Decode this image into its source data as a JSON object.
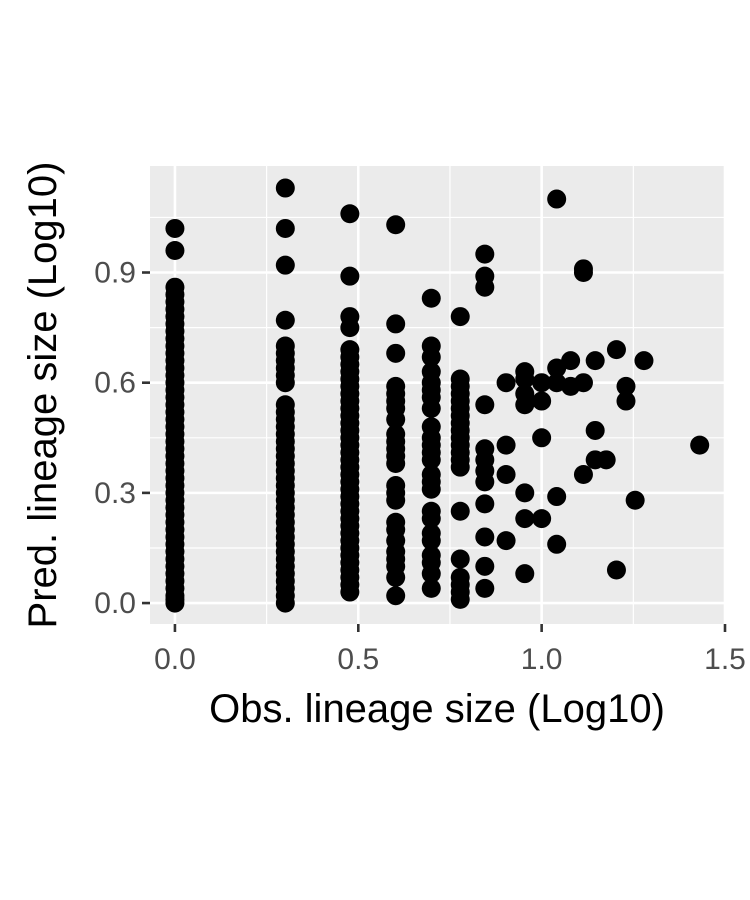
{
  "chart_data": {
    "type": "scatter",
    "title": "",
    "xlabel": "Obs. lineage size (Log10)",
    "ylabel": "Pred. lineage size (Log10)",
    "xlim": [
      -0.068,
      1.5
    ],
    "ylim": [
      -0.057,
      1.19
    ],
    "x_ticks": [
      0.0,
      0.5,
      1.0,
      1.5
    ],
    "x_tick_labels": [
      "0.0",
      "0.5",
      "1.0",
      "1.5"
    ],
    "y_ticks": [
      0.0,
      0.3,
      0.6,
      0.9
    ],
    "y_tick_labels": [
      "0.0",
      "0.3",
      "0.6",
      "0.9"
    ],
    "grid": true,
    "legend": "none",
    "colors": {
      "panel": "#ebebeb",
      "grid": "#ffffff",
      "point": "#000000",
      "tick_label": "#4d4d4d"
    },
    "points": [
      [
        0.0,
        0.0
      ],
      [
        0.0,
        0.01
      ],
      [
        0.0,
        0.02
      ],
      [
        0.0,
        0.04
      ],
      [
        0.0,
        0.06
      ],
      [
        0.0,
        0.08
      ],
      [
        0.0,
        0.1
      ],
      [
        0.0,
        0.12
      ],
      [
        0.0,
        0.14
      ],
      [
        0.0,
        0.16
      ],
      [
        0.0,
        0.18
      ],
      [
        0.0,
        0.2
      ],
      [
        0.0,
        0.22
      ],
      [
        0.0,
        0.24
      ],
      [
        0.0,
        0.26
      ],
      [
        0.0,
        0.28
      ],
      [
        0.0,
        0.3
      ],
      [
        0.0,
        0.32
      ],
      [
        0.0,
        0.34
      ],
      [
        0.0,
        0.36
      ],
      [
        0.0,
        0.38
      ],
      [
        0.0,
        0.4
      ],
      [
        0.0,
        0.42
      ],
      [
        0.0,
        0.44
      ],
      [
        0.0,
        0.46
      ],
      [
        0.0,
        0.48
      ],
      [
        0.0,
        0.5
      ],
      [
        0.0,
        0.52
      ],
      [
        0.0,
        0.54
      ],
      [
        0.0,
        0.56
      ],
      [
        0.0,
        0.58
      ],
      [
        0.0,
        0.6
      ],
      [
        0.0,
        0.62
      ],
      [
        0.0,
        0.64
      ],
      [
        0.0,
        0.66
      ],
      [
        0.0,
        0.68
      ],
      [
        0.0,
        0.7
      ],
      [
        0.0,
        0.72
      ],
      [
        0.0,
        0.74
      ],
      [
        0.0,
        0.76
      ],
      [
        0.0,
        0.78
      ],
      [
        0.0,
        0.8
      ],
      [
        0.0,
        0.82
      ],
      [
        0.0,
        0.84
      ],
      [
        0.0,
        0.86
      ],
      [
        0.0,
        0.96
      ],
      [
        0.0,
        1.02
      ],
      [
        0.301,
        0.0
      ],
      [
        0.301,
        0.02
      ],
      [
        0.301,
        0.04
      ],
      [
        0.301,
        0.06
      ],
      [
        0.301,
        0.08
      ],
      [
        0.301,
        0.1
      ],
      [
        0.301,
        0.12
      ],
      [
        0.301,
        0.14
      ],
      [
        0.301,
        0.16
      ],
      [
        0.301,
        0.18
      ],
      [
        0.301,
        0.2
      ],
      [
        0.301,
        0.22
      ],
      [
        0.301,
        0.24
      ],
      [
        0.301,
        0.26
      ],
      [
        0.301,
        0.28
      ],
      [
        0.301,
        0.3
      ],
      [
        0.301,
        0.32
      ],
      [
        0.301,
        0.34
      ],
      [
        0.301,
        0.36
      ],
      [
        0.301,
        0.38
      ],
      [
        0.301,
        0.4
      ],
      [
        0.301,
        0.42
      ],
      [
        0.301,
        0.44
      ],
      [
        0.301,
        0.46
      ],
      [
        0.301,
        0.48
      ],
      [
        0.301,
        0.5
      ],
      [
        0.301,
        0.52
      ],
      [
        0.301,
        0.54
      ],
      [
        0.301,
        0.6
      ],
      [
        0.301,
        0.62
      ],
      [
        0.301,
        0.64
      ],
      [
        0.301,
        0.66
      ],
      [
        0.301,
        0.68
      ],
      [
        0.301,
        0.7
      ],
      [
        0.301,
        0.77
      ],
      [
        0.301,
        0.92
      ],
      [
        0.301,
        1.02
      ],
      [
        0.301,
        1.13
      ],
      [
        0.477,
        0.03
      ],
      [
        0.477,
        0.05
      ],
      [
        0.477,
        0.07
      ],
      [
        0.477,
        0.09
      ],
      [
        0.477,
        0.11
      ],
      [
        0.477,
        0.13
      ],
      [
        0.477,
        0.15
      ],
      [
        0.477,
        0.17
      ],
      [
        0.477,
        0.19
      ],
      [
        0.477,
        0.21
      ],
      [
        0.477,
        0.23
      ],
      [
        0.477,
        0.25
      ],
      [
        0.477,
        0.27
      ],
      [
        0.477,
        0.29
      ],
      [
        0.477,
        0.31
      ],
      [
        0.477,
        0.33
      ],
      [
        0.477,
        0.35
      ],
      [
        0.477,
        0.37
      ],
      [
        0.477,
        0.39
      ],
      [
        0.477,
        0.41
      ],
      [
        0.477,
        0.43
      ],
      [
        0.477,
        0.45
      ],
      [
        0.477,
        0.47
      ],
      [
        0.477,
        0.49
      ],
      [
        0.477,
        0.51
      ],
      [
        0.477,
        0.53
      ],
      [
        0.477,
        0.55
      ],
      [
        0.477,
        0.57
      ],
      [
        0.477,
        0.59
      ],
      [
        0.477,
        0.61
      ],
      [
        0.477,
        0.63
      ],
      [
        0.477,
        0.65
      ],
      [
        0.477,
        0.67
      ],
      [
        0.477,
        0.69
      ],
      [
        0.477,
        0.75
      ],
      [
        0.477,
        0.78
      ],
      [
        0.477,
        0.89
      ],
      [
        0.477,
        1.06
      ],
      [
        0.602,
        0.02
      ],
      [
        0.602,
        0.07
      ],
      [
        0.602,
        0.1
      ],
      [
        0.602,
        0.12
      ],
      [
        0.602,
        0.14
      ],
      [
        0.602,
        0.17
      ],
      [
        0.602,
        0.2
      ],
      [
        0.602,
        0.22
      ],
      [
        0.602,
        0.28
      ],
      [
        0.602,
        0.3
      ],
      [
        0.602,
        0.32
      ],
      [
        0.602,
        0.38
      ],
      [
        0.602,
        0.4
      ],
      [
        0.602,
        0.42
      ],
      [
        0.602,
        0.44
      ],
      [
        0.602,
        0.46
      ],
      [
        0.602,
        0.5
      ],
      [
        0.602,
        0.53
      ],
      [
        0.602,
        0.55
      ],
      [
        0.602,
        0.57
      ],
      [
        0.602,
        0.59
      ],
      [
        0.602,
        0.68
      ],
      [
        0.602,
        0.76
      ],
      [
        0.602,
        1.03
      ],
      [
        0.699,
        0.04
      ],
      [
        0.699,
        0.08
      ],
      [
        0.699,
        0.11
      ],
      [
        0.699,
        0.13
      ],
      [
        0.699,
        0.17
      ],
      [
        0.699,
        0.19
      ],
      [
        0.699,
        0.23
      ],
      [
        0.699,
        0.25
      ],
      [
        0.699,
        0.31
      ],
      [
        0.699,
        0.33
      ],
      [
        0.699,
        0.35
      ],
      [
        0.699,
        0.39
      ],
      [
        0.699,
        0.41
      ],
      [
        0.699,
        0.43
      ],
      [
        0.699,
        0.45
      ],
      [
        0.699,
        0.48
      ],
      [
        0.699,
        0.53
      ],
      [
        0.699,
        0.56
      ],
      [
        0.699,
        0.58
      ],
      [
        0.699,
        0.6
      ],
      [
        0.699,
        0.63
      ],
      [
        0.699,
        0.67
      ],
      [
        0.699,
        0.7
      ],
      [
        0.699,
        0.83
      ],
      [
        0.778,
        0.01
      ],
      [
        0.778,
        0.03
      ],
      [
        0.778,
        0.05
      ],
      [
        0.778,
        0.07
      ],
      [
        0.778,
        0.12
      ],
      [
        0.778,
        0.25
      ],
      [
        0.778,
        0.37
      ],
      [
        0.778,
        0.39
      ],
      [
        0.778,
        0.41
      ],
      [
        0.778,
        0.43
      ],
      [
        0.778,
        0.45
      ],
      [
        0.778,
        0.47
      ],
      [
        0.778,
        0.49
      ],
      [
        0.778,
        0.51
      ],
      [
        0.778,
        0.53
      ],
      [
        0.778,
        0.55
      ],
      [
        0.778,
        0.57
      ],
      [
        0.778,
        0.59
      ],
      [
        0.778,
        0.61
      ],
      [
        0.778,
        0.78
      ],
      [
        0.845,
        0.04
      ],
      [
        0.845,
        0.1
      ],
      [
        0.845,
        0.18
      ],
      [
        0.845,
        0.27
      ],
      [
        0.845,
        0.33
      ],
      [
        0.845,
        0.36
      ],
      [
        0.845,
        0.39
      ],
      [
        0.845,
        0.42
      ],
      [
        0.845,
        0.54
      ],
      [
        0.845,
        0.86
      ],
      [
        0.845,
        0.89
      ],
      [
        0.845,
        0.95
      ],
      [
        0.903,
        0.17
      ],
      [
        0.903,
        0.35
      ],
      [
        0.903,
        0.43
      ],
      [
        0.903,
        0.6
      ],
      [
        0.954,
        0.08
      ],
      [
        0.954,
        0.23
      ],
      [
        0.954,
        0.3
      ],
      [
        0.954,
        0.54
      ],
      [
        0.954,
        0.57
      ],
      [
        0.954,
        0.61
      ],
      [
        0.954,
        0.63
      ],
      [
        1.0,
        0.23
      ],
      [
        1.0,
        0.45
      ],
      [
        1.0,
        0.55
      ],
      [
        1.0,
        0.6
      ],
      [
        1.041,
        0.16
      ],
      [
        1.041,
        0.29
      ],
      [
        1.041,
        0.6
      ],
      [
        1.041,
        0.64
      ],
      [
        1.041,
        1.1
      ],
      [
        1.079,
        0.59
      ],
      [
        1.079,
        0.66
      ],
      [
        1.114,
        0.35
      ],
      [
        1.114,
        0.6
      ],
      [
        1.114,
        0.9
      ],
      [
        1.114,
        0.91
      ],
      [
        1.146,
        0.39
      ],
      [
        1.146,
        0.47
      ],
      [
        1.146,
        0.66
      ],
      [
        1.176,
        0.39
      ],
      [
        1.204,
        0.09
      ],
      [
        1.204,
        0.69
      ],
      [
        1.23,
        0.55
      ],
      [
        1.23,
        0.59
      ],
      [
        1.255,
        0.28
      ],
      [
        1.279,
        0.66
      ],
      [
        1.431,
        0.43
      ]
    ]
  }
}
